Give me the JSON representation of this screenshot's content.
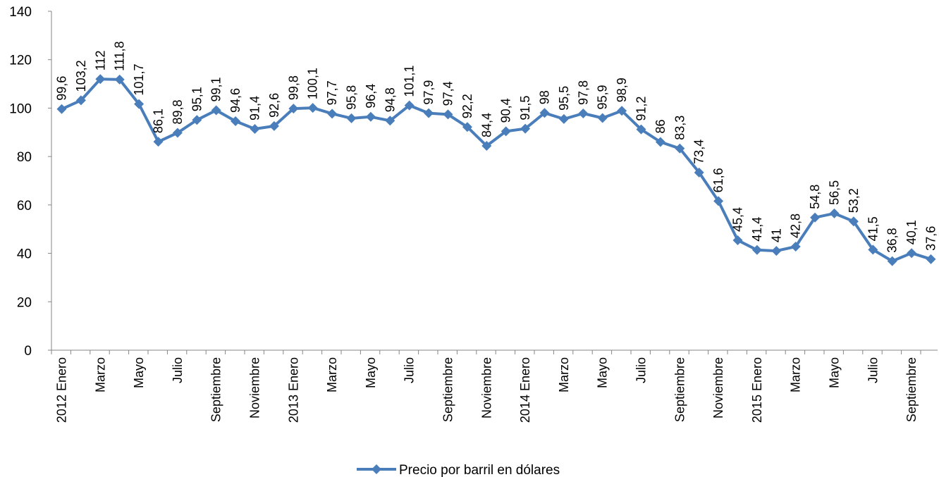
{
  "chart_data": {
    "type": "line",
    "title": "",
    "xlabel": "",
    "ylabel": "",
    "ylim": [
      0,
      140
    ],
    "yticks": [
      0,
      20,
      40,
      60,
      80,
      100,
      120,
      140
    ],
    "grid": false,
    "legend_position": "bottom",
    "categories": [
      "2012 Enero",
      "",
      "Marzo",
      "",
      "Mayo",
      "",
      "Julio",
      "",
      "Septiembre",
      "",
      "Noviembre",
      "",
      "2013 Enero",
      "",
      "Marzo",
      "",
      "Mayo",
      "",
      "Julio",
      "",
      "Septiembre",
      "",
      "Noviembre",
      "",
      "2014 Enero",
      "",
      "Marzo",
      "",
      "Mayo",
      "",
      "Julio",
      "",
      "Septiembre",
      "",
      "Noviembre",
      "",
      "2015 Enero",
      "",
      "Marzo",
      "",
      "Mayo",
      "",
      "Julio",
      "",
      "Septiembre",
      ""
    ],
    "series": [
      {
        "name": "Precio por barril en dólares",
        "color": "#4a7ebb",
        "values": [
          99.6,
          103.2,
          112,
          111.8,
          101.7,
          86.1,
          89.8,
          95.1,
          99.1,
          94.6,
          91.4,
          92.6,
          99.8,
          100.1,
          97.7,
          95.8,
          96.4,
          94.8,
          101.1,
          97.9,
          97.4,
          92.2,
          84.4,
          90.4,
          91.5,
          98,
          95.5,
          97.8,
          95.9,
          98.9,
          91.2,
          86,
          83.3,
          73.4,
          61.6,
          45.4,
          41.4,
          41,
          42.8,
          54.8,
          56.5,
          53.2,
          41.5,
          36.8,
          40.1,
          37.6
        ],
        "labels": [
          "99,6",
          "103,2",
          "112",
          "111,8",
          "101,7",
          "86,1",
          "89,8",
          "95,1",
          "99,1",
          "94,6",
          "91,4",
          "92,6",
          "99,8",
          "100,1",
          "97,7",
          "95,8",
          "96,4",
          "94,8",
          "101,1",
          "97,9",
          "97,4",
          "92,2",
          "84,4",
          "90,4",
          "91,5",
          "98",
          "95,5",
          "97,8",
          "95,9",
          "98,9",
          "91,2",
          "86",
          "83,3",
          "73,4",
          "61,6",
          "45,4",
          "41,4",
          "41",
          "42,8",
          "54,8",
          "56,5",
          "53,2",
          "41,5",
          "36,8",
          "40,1",
          "37,6"
        ]
      }
    ]
  }
}
